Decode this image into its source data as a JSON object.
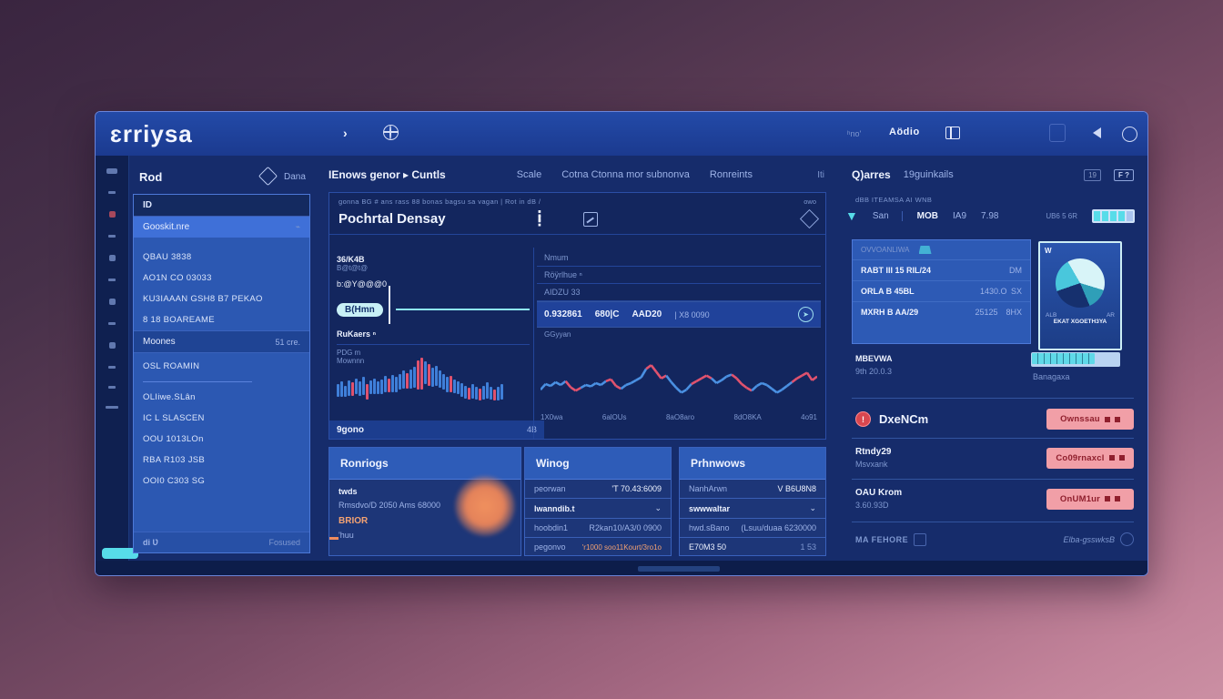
{
  "header": {
    "logo": "ɛrriysa",
    "chevron": "›",
    "right_small": "ʰno'",
    "right_menu": "Aödio"
  },
  "sidebar": {
    "title": "Rod",
    "badge": "Dana",
    "search": "ID",
    "selected": "Gooskit.nre",
    "items_top": [
      "QBAU 3838",
      "AO1N CO 03033",
      "KU3IAAAN GSH8 B7 PEKAO",
      "8 18 BOAREAME"
    ],
    "section": {
      "label": "Moones",
      "value": "51 cre."
    },
    "item_mid": "OSL ROAMIN",
    "items": [
      "OLIiwe.SLân",
      "IC L SLASCEN",
      "OOU 1013LOn",
      "RBA R103 JSB",
      "OOI0 C303 SG"
    ],
    "footer_left": "di Ʋ",
    "footer_right": "Fosused"
  },
  "center": {
    "tab_title": "IEnows genor ▸ Cuntls",
    "tabs": [
      "Scale",
      "Cotna Ctonna mor subnonva",
      "Ronreints"
    ],
    "tabs_right": "Iti",
    "panel": {
      "caption": "gonna BG # ans rass 88  bonas bagsu sa vagan | Rot in dB /",
      "caption_right": "owo",
      "title": "Pochrtal Densay",
      "l_label1": "36/K4B",
      "l_faint1": "B@t@t@",
      "l_label2": "b:@Y@@@0",
      "l_pill": "B(Hmn",
      "l_label3": "RuKaers ⁿ",
      "l_faint2": "PDG  m",
      "l_faint3": "Mownnn",
      "l_footer": "9gono",
      "l_footer_right": "4B",
      "r_faint1": "Nmum",
      "r_faint2": "Röÿrlhue ⁿ",
      "r_faint3": "AIDZU 33",
      "r_row": [
        "0.932861",
        "680|C",
        "AAD20",
        "| X8 0090"
      ],
      "r_faint4": "GGyyan",
      "x_labels": [
        "1X0wa",
        "6alOUs",
        "8aO8aro",
        "8dO8KA",
        "4o91"
      ]
    },
    "cards": [
      {
        "title": "Ronriogs",
        "l1": "twds",
        "l2": "Rmsdvo/D 2050 Ams 68000",
        "l3": "BRIOR",
        "l4": "'huu"
      },
      {
        "title": "Winog",
        "r1l": "peorwan",
        "r1v": "'T 70.43:6009",
        "r2l": "lwanndib.t",
        "r3l": "hoobdin1",
        "r3v": "R2kan10/A3/0 0900",
        "r4l": "pegonvo",
        "r4v": "'r1000 soo11Kourt/3ro1o"
      },
      {
        "title": "Prhnwows",
        "r1l": "NanhArwn",
        "r1v": "V B6U8N8",
        "r2l": "swwwaltar",
        "r3l": "hwd.sBano",
        "r3v": "(Lsuu/duaa 6230000",
        "r4l": "E70M3 50",
        "r4v": "1 53"
      }
    ]
  },
  "right": {
    "title": "Q)arres",
    "subtitle": "19guinkails",
    "badge": "19",
    "flag": "F ?",
    "caption": "dBB ITEAMSA AI WNB",
    "tabs": [
      "San",
      "MOB",
      "IA9",
      "7.98"
    ],
    "tabs_note": "UB6 5 6R",
    "list_header": "OVVOANLIWA",
    "rows": [
      {
        "a": "RABT III 15 RIL/24",
        "b": "",
        "c": "DM"
      },
      {
        "a": "ORLA B 45BL",
        "b": "1430.O",
        "c": "SX"
      },
      {
        "a": "MXRH B AA/29",
        "b": "25125",
        "c": "8HX"
      }
    ],
    "pie_card": {
      "corner": "W",
      "f1": "ALB",
      "f2": "AR",
      "f3": "EKAT XGOETH3YA"
    },
    "gauge": {
      "t1": "MBEVWA",
      "t2": "9th 20.0.3",
      "bar": "Banagaxa"
    },
    "actions": [
      {
        "l1": "DxeNCm",
        "l2": "",
        "btn": "Ownssau"
      },
      {
        "l1": "Rtndy29",
        "l2": "Msvxank",
        "btn": "Co09rnaxcl"
      },
      {
        "l1": "OAU Krom",
        "l2": "3.60.93D",
        "btn": "OnUM1ur"
      }
    ],
    "footer_left": "MA FEHORE",
    "footer_right": "Elba-gsswksB"
  },
  "charts": {
    "candles": {
      "type": "bar",
      "colors": {
        "up": "#3f7fd9",
        "down": "#e0526e"
      },
      "bars": [
        [
          55,
          25,
          0
        ],
        [
          50,
          30,
          0
        ],
        [
          58,
          22,
          0
        ],
        [
          48,
          30,
          0
        ],
        [
          52,
          26,
          1
        ],
        [
          45,
          30,
          0
        ],
        [
          50,
          28,
          0
        ],
        [
          42,
          34,
          0
        ],
        [
          55,
          30,
          1
        ],
        [
          48,
          26,
          0
        ],
        [
          44,
          30,
          0
        ],
        [
          50,
          24,
          0
        ],
        [
          46,
          28,
          0
        ],
        [
          40,
          30,
          0
        ],
        [
          44,
          26,
          1
        ],
        [
          38,
          32,
          0
        ],
        [
          42,
          28,
          0
        ],
        [
          36,
          30,
          0
        ],
        [
          30,
          34,
          0
        ],
        [
          34,
          30,
          1
        ],
        [
          28,
          36,
          0
        ],
        [
          22,
          40,
          0
        ],
        [
          10,
          55,
          1
        ],
        [
          5,
          60,
          1
        ],
        [
          12,
          44,
          0
        ],
        [
          18,
          40,
          1
        ],
        [
          24,
          36,
          0
        ],
        [
          20,
          38,
          0
        ],
        [
          30,
          32,
          0
        ],
        [
          36,
          30,
          0
        ],
        [
          42,
          28,
          0
        ],
        [
          40,
          30,
          1
        ],
        [
          46,
          26,
          0
        ],
        [
          50,
          24,
          0
        ],
        [
          54,
          26,
          0
        ],
        [
          58,
          24,
          0
        ],
        [
          62,
          22,
          1
        ],
        [
          56,
          26,
          0
        ],
        [
          60,
          24,
          0
        ],
        [
          64,
          22,
          1
        ],
        [
          58,
          26,
          0
        ],
        [
          52,
          30,
          0
        ],
        [
          60,
          24,
          0
        ],
        [
          66,
          20,
          1
        ],
        [
          60,
          26,
          0
        ],
        [
          55,
          30,
          0
        ]
      ]
    },
    "line": {
      "type": "line",
      "colors": {
        "main": "#4a90e2",
        "alert": "#e0526e"
      },
      "points": [
        60,
        48,
        52,
        44,
        50,
        42,
        55,
        62,
        56,
        50,
        53,
        46,
        50,
        42,
        38,
        52,
        58,
        50,
        46,
        40,
        34,
        16,
        8,
        22,
        36,
        30,
        44,
        56,
        66,
        60,
        48,
        42,
        36,
        30,
        36,
        46,
        40,
        32,
        28,
        36,
        48,
        56,
        62,
        52,
        46,
        50,
        58,
        66,
        60,
        52,
        44,
        36,
        30,
        24,
        40,
        32
      ],
      "red_segments": [
        [
          5,
          7
        ],
        [
          13,
          15
        ],
        [
          21,
          24
        ],
        [
          30,
          33
        ],
        [
          38,
          41
        ],
        [
          50,
          54
        ]
      ]
    },
    "pie": {
      "type": "pie",
      "slices": [
        {
          "color": "#d8f4f8",
          "value": 38
        },
        {
          "color": "#2f9fb8",
          "value": 14
        },
        {
          "color": "#16306e",
          "value": 26
        },
        {
          "color": "#49c7dc",
          "value": 22
        }
      ]
    }
  }
}
